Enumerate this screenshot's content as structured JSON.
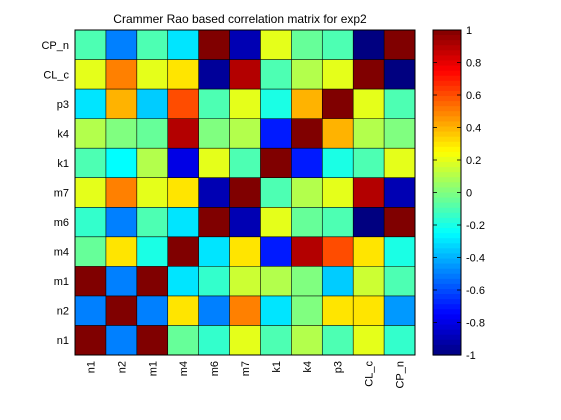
{
  "chart_data": {
    "type": "heatmap",
    "title": "Crammer Rao based correlation matrix for exp2",
    "xlabel": "",
    "ylabel": "",
    "x_categories": [
      "n1",
      "n2",
      "m1",
      "m4",
      "m6",
      "m7",
      "k1",
      "k4",
      "p3",
      "CL_c",
      "CP_n"
    ],
    "y_categories_top_to_bottom": [
      "CP_n",
      "CL_c",
      "p3",
      "k4",
      "k1",
      "m7",
      "m6",
      "m4",
      "m1",
      "n2",
      "n1"
    ],
    "values_top_to_bottom": [
      [
        -0.1,
        -0.5,
        -0.1,
        -0.3,
        1.0,
        -0.9,
        0.2,
        -0.05,
        -0.1,
        -1.0,
        1.0
      ],
      [
        0.2,
        0.5,
        0.2,
        0.3,
        -0.95,
        0.9,
        -0.1,
        0.1,
        0.2,
        1.0,
        -1.0
      ],
      [
        -0.3,
        0.4,
        -0.35,
        0.6,
        -0.1,
        0.2,
        -0.2,
        0.4,
        1.0,
        0.2,
        -0.1
      ],
      [
        0.1,
        0.0,
        -0.05,
        0.9,
        0.0,
        0.1,
        -0.7,
        1.0,
        0.4,
        0.1,
        0.0
      ],
      [
        -0.1,
        -0.25,
        0.1,
        -0.8,
        0.2,
        -0.1,
        1.0,
        -0.7,
        -0.2,
        -0.1,
        0.2
      ],
      [
        0.2,
        0.5,
        0.2,
        0.3,
        -0.9,
        1.0,
        -0.1,
        0.1,
        0.2,
        0.9,
        -0.9
      ],
      [
        -0.15,
        -0.5,
        -0.1,
        -0.3,
        1.0,
        -0.9,
        0.2,
        -0.05,
        -0.1,
        -1.0,
        1.0
      ],
      [
        -0.05,
        0.3,
        -0.2,
        1.0,
        -0.3,
        0.3,
        -0.7,
        0.9,
        0.6,
        0.3,
        -0.2
      ],
      [
        1.0,
        -0.5,
        1.0,
        -0.3,
        -0.15,
        0.15,
        0.1,
        0.0,
        -0.35,
        0.15,
        -0.1
      ],
      [
        -0.5,
        1.0,
        -0.5,
        0.3,
        -0.5,
        0.5,
        -0.3,
        0.0,
        0.3,
        0.3,
        -0.45
      ],
      [
        1.0,
        -0.5,
        1.0,
        -0.05,
        -0.15,
        0.2,
        -0.1,
        0.1,
        -0.1,
        0.2,
        -0.15
      ]
    ],
    "colorbar": {
      "min": -1,
      "max": 1,
      "ticks": [
        -1,
        -0.8,
        -0.6,
        -0.4,
        -0.2,
        0,
        0.2,
        0.4,
        0.6,
        0.8,
        1
      ],
      "tick_labels": [
        "-1",
        "-0.8",
        "-0.6",
        "-0.4",
        "-0.2",
        "0",
        "0.2",
        "0.4",
        "0.6",
        "0.8",
        "1"
      ],
      "colormap": "jet"
    },
    "grid": true,
    "legend": "colorbar-right"
  }
}
